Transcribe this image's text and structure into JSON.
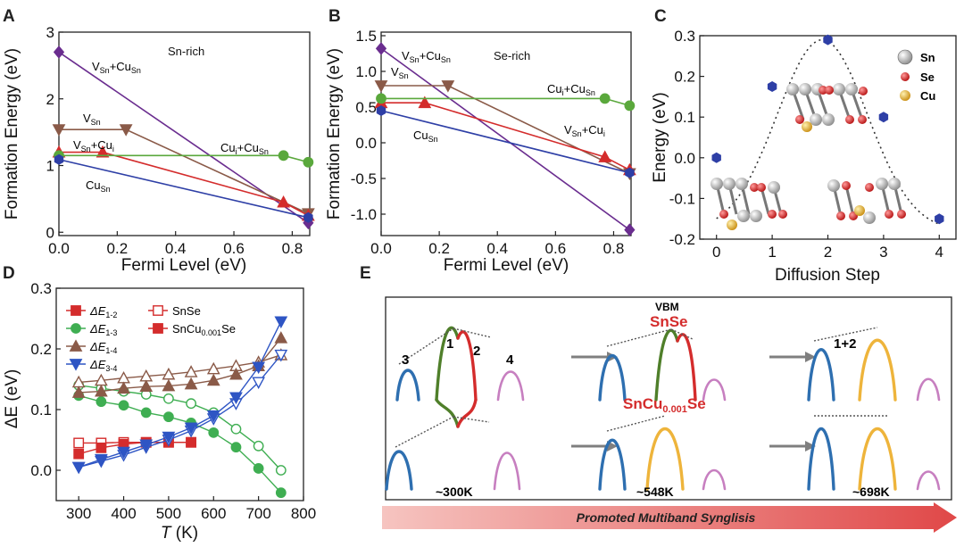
{
  "figure": {
    "panels": [
      "A",
      "B",
      "C",
      "D",
      "E"
    ]
  },
  "chart_data": [
    {
      "panel": "A",
      "type": "line",
      "annotation": "Sn-rich",
      "xlabel": "Fermi Level (eV)",
      "ylabel": "Formation Energy (eV)",
      "xlim": [
        0,
        0.86
      ],
      "ylim": [
        -0.05,
        3.0
      ],
      "xticks": [
        "0.0",
        "0.2",
        "0.4",
        "0.6",
        "0.8"
      ],
      "xtick_values": [
        0,
        0.2,
        0.4,
        0.6,
        0.8
      ],
      "yticks": [
        "0",
        "1",
        "2",
        "3"
      ],
      "ytick_values": [
        0,
        1,
        2,
        3
      ],
      "series": [
        {
          "name": "V_Sn+Cu_Sn",
          "label_main": "V",
          "label_sub": "Sn",
          "label_main2": "+Cu",
          "label_sub2": "Sn",
          "color": "#6a2d8f",
          "marker": "diamond",
          "x": [
            0,
            0.855
          ],
          "y": [
            2.7,
            0.14
          ]
        },
        {
          "name": "V_Sn",
          "label_main": "V",
          "label_sub": "Sn",
          "label_main2": "",
          "label_sub2": "",
          "color": "#8a5a48",
          "marker": "triangle-down",
          "x": [
            0,
            0.23,
            0.855
          ],
          "y": [
            1.54,
            1.54,
            0.28
          ]
        },
        {
          "name": "V_Sn+Cu_i",
          "label_main": "V",
          "label_sub": "Sn",
          "label_main2": "+Cu",
          "label_sub2": "i",
          "color": "#d42c2c",
          "marker": "triangle-up",
          "x": [
            0,
            0.15,
            0.77,
            0.855
          ],
          "y": [
            1.2,
            1.2,
            0.45,
            0.25
          ]
        },
        {
          "name": "Cu_i+Cu_Sn",
          "label_main": "Cu",
          "label_sub": "i",
          "label_main2": "+Cu",
          "label_sub2": "Sn",
          "color": "#5aa83c",
          "marker": "circle",
          "x": [
            0,
            0.77,
            0.855
          ],
          "y": [
            1.15,
            1.15,
            1.05
          ]
        },
        {
          "name": "Cu_Sn",
          "label_main": "Cu",
          "label_sub": "Sn",
          "label_main2": "",
          "label_sub2": "",
          "color": "#2e3fa6",
          "marker": "hexagon",
          "x": [
            0,
            0.855
          ],
          "y": [
            1.09,
            0.22
          ]
        }
      ]
    },
    {
      "panel": "B",
      "type": "line",
      "annotation": "Se-rich",
      "xlabel": "Fermi Level (eV)",
      "ylabel": "Formation Energy (eV)",
      "xlim": [
        0,
        0.86
      ],
      "ylim": [
        -1.3,
        1.55
      ],
      "xticks": [
        "0.0",
        "0.2",
        "0.4",
        "0.6",
        "0.8"
      ],
      "xtick_values": [
        0,
        0.2,
        0.4,
        0.6,
        0.8
      ],
      "yticks": [
        "1.5",
        "1.0",
        "0.5",
        "0.0",
        "-0.5",
        "-1.0"
      ],
      "ytick_values": [
        1.5,
        1.0,
        0.5,
        0.0,
        -0.5,
        -1.0
      ],
      "series": [
        {
          "name": "V_Sn+Cu_Sn",
          "label_main": "V",
          "label_sub": "Sn",
          "label_main2": "+Cu",
          "label_sub2": "Sn",
          "color": "#6a2d8f",
          "marker": "diamond",
          "x": [
            0,
            0.855
          ],
          "y": [
            1.32,
            -1.22
          ]
        },
        {
          "name": "V_Sn",
          "label_main": "V",
          "label_sub": "Sn",
          "label_main2": "",
          "label_sub2": "",
          "color": "#8a5a48",
          "marker": "triangle-down",
          "x": [
            0,
            0.23,
            0.855
          ],
          "y": [
            0.8,
            0.8,
            -0.43
          ]
        },
        {
          "name": "V_Sn+Cu_i",
          "label_main": "V",
          "label_sub": "Sn",
          "label_main2": "+Cu",
          "label_sub2": "i",
          "color": "#d42c2c",
          "marker": "triangle-up",
          "x": [
            0,
            0.15,
            0.77,
            0.855
          ],
          "y": [
            0.56,
            0.56,
            -0.2,
            -0.38
          ]
        },
        {
          "name": "Cu_i+Cu_Sn",
          "label_main": "Cu",
          "label_sub": "i",
          "label_main2": "+Cu",
          "label_sub2": "Sn",
          "color": "#5aa83c",
          "marker": "circle",
          "x": [
            0,
            0.77,
            0.855
          ],
          "y": [
            0.62,
            0.62,
            0.52
          ]
        },
        {
          "name": "Cu_Sn",
          "label_main": "Cu",
          "label_sub": "Sn",
          "label_main2": "",
          "label_sub2": "",
          "color": "#2e3fa6",
          "marker": "hexagon",
          "x": [
            0,
            0.855
          ],
          "y": [
            0.45,
            -0.42
          ]
        }
      ]
    },
    {
      "panel": "C",
      "type": "scatter",
      "xlabel": "Diffusion Step",
      "ylabel": "Energy (eV)",
      "xlim": [
        -0.3,
        4.3
      ],
      "ylim": [
        -0.2,
        0.3
      ],
      "xticks": [
        "0",
        "1",
        "2",
        "3",
        "4"
      ],
      "xtick_values": [
        0,
        1,
        2,
        3,
        4
      ],
      "yticks": [
        "0.3",
        "0.2",
        "0.1",
        "0.0",
        "-0.1",
        "-0.2"
      ],
      "ytick_values": [
        0.3,
        0.2,
        0.1,
        0.0,
        -0.1,
        -0.2
      ],
      "points": {
        "x": [
          0,
          1,
          2,
          3,
          4
        ],
        "y": [
          0.0,
          0.175,
          0.29,
          0.1,
          -0.15
        ]
      },
      "point_color": "#2e3fa6",
      "legend": [
        {
          "label": "Sn",
          "color": "#a9a9a9"
        },
        {
          "label": "Se",
          "color": "#d42020"
        },
        {
          "label": "Cu",
          "color": "#e8b630"
        }
      ]
    },
    {
      "panel": "D",
      "type": "line",
      "xlabel_main": "T",
      "xlabel_unit": " (K)",
      "ylabel": "ΔE (eV)",
      "xlim": [
        250,
        800
      ],
      "ylim": [
        -0.05,
        0.3
      ],
      "xticks": [
        "300",
        "400",
        "500",
        "600",
        "700",
        "800"
      ],
      "xtick_values": [
        300,
        400,
        500,
        600,
        700,
        800
      ],
      "yticks": [
        "0.3",
        "0.2",
        "0.1",
        "0.0"
      ],
      "ytick_values": [
        0.3,
        0.2,
        0.1,
        0.0
      ],
      "legend": [
        {
          "label_main": "ΔE",
          "label_sub": "1-2",
          "color": "#d42c2c",
          "marker": "square"
        },
        {
          "label_main": "ΔE",
          "label_sub": "1-3",
          "color": "#3fae52",
          "marker": "circle"
        },
        {
          "label_main": "ΔE",
          "label_sub": "1-4",
          "color": "#8a5a48",
          "marker": "triangle-up"
        },
        {
          "label_main": "ΔE",
          "label_sub": "3-4",
          "color": "#2e55c4",
          "marker": "triangle-down"
        },
        {
          "label_main": "SnSe",
          "label_sub": "",
          "label_tail": "",
          "color": "#d42c2c",
          "marker": "square-open"
        },
        {
          "label_main": "SnCu",
          "label_sub": "0.001",
          "label_tail": "Se",
          "color": "#d42c2c",
          "marker": "square"
        }
      ],
      "series": [
        {
          "name": "ΔE1-2 SnSe",
          "color": "#d42c2c",
          "marker": "square",
          "filled": false,
          "x": [
            300,
            350,
            400,
            450,
            500,
            550
          ],
          "y": [
            0.045,
            0.045,
            0.046,
            0.046,
            0.046,
            0.046
          ]
        },
        {
          "name": "ΔE1-2 SnCu0.001Se",
          "color": "#d42c2c",
          "marker": "square",
          "filled": true,
          "x": [
            300,
            350,
            400,
            450,
            500,
            550
          ],
          "y": [
            0.027,
            0.037,
            0.043,
            0.046,
            0.046,
            0.046
          ]
        },
        {
          "name": "ΔE1-3 SnSe",
          "color": "#3fae52",
          "marker": "circle",
          "filled": false,
          "x": [
            300,
            350,
            400,
            450,
            500,
            550,
            600,
            650,
            700,
            750
          ],
          "y": [
            0.14,
            0.135,
            0.13,
            0.125,
            0.118,
            0.11,
            0.095,
            0.068,
            0.04,
            0.0
          ]
        },
        {
          "name": "ΔE1-3 SnCu0.001Se",
          "color": "#3fae52",
          "marker": "circle",
          "filled": true,
          "x": [
            300,
            350,
            400,
            450,
            500,
            550,
            600,
            650,
            700,
            750
          ],
          "y": [
            0.123,
            0.113,
            0.107,
            0.095,
            0.088,
            0.078,
            0.062,
            0.038,
            0.003,
            -0.037
          ]
        },
        {
          "name": "ΔE1-4 SnSe",
          "color": "#8a5a48",
          "marker": "triangle-up",
          "filled": false,
          "x": [
            300,
            350,
            400,
            450,
            500,
            550,
            600,
            650,
            700,
            750
          ],
          "y": [
            0.145,
            0.148,
            0.152,
            0.155,
            0.158,
            0.162,
            0.167,
            0.172,
            0.178,
            0.19
          ]
        },
        {
          "name": "ΔE1-4 SnCu0.001Se",
          "color": "#8a5a48",
          "marker": "triangle-up",
          "filled": true,
          "x": [
            300,
            350,
            400,
            450,
            500,
            550,
            600,
            650,
            700,
            750
          ],
          "y": [
            0.128,
            0.13,
            0.135,
            0.138,
            0.139,
            0.142,
            0.148,
            0.158,
            0.172,
            0.218
          ]
        },
        {
          "name": "ΔE3-4 SnSe",
          "color": "#2e55c4",
          "marker": "triangle-down",
          "filled": false,
          "x": [
            300,
            350,
            400,
            450,
            500,
            550,
            600,
            650,
            700,
            750
          ],
          "y": [
            0.005,
            0.015,
            0.025,
            0.038,
            0.05,
            0.065,
            0.085,
            0.11,
            0.145,
            0.19
          ]
        },
        {
          "name": "ΔE3-4 SnCu0.001Se",
          "color": "#2e55c4",
          "marker": "triangle-down",
          "filled": true,
          "x": [
            300,
            350,
            400,
            450,
            500,
            550,
            600,
            650,
            700,
            750
          ],
          "y": [
            0.005,
            0.018,
            0.03,
            0.042,
            0.055,
            0.07,
            0.09,
            0.12,
            0.17,
            0.245
          ]
        }
      ]
    },
    {
      "panel": "E",
      "type": "diagram",
      "texts": {
        "vbm": "VBM",
        "snse": "SnSe",
        "sncu_main": "SnCu",
        "sncu_sub": "0.001",
        "sncu_tail": "Se",
        "peak1": "1",
        "peak2": "2",
        "peak3": "3",
        "peak4": "4",
        "peak12": "1+2",
        "temp1": "~300K",
        "temp2": "~548K",
        "temp3": "~698K",
        "banner": "Promoted Multiband Synglisis"
      },
      "colors": {
        "band1": "#4f7f2a",
        "band2": "#d42c2c",
        "band3": "#2e6fb0",
        "band4": "#c77fc0",
        "merged": "#eeb43b",
        "arrow": "#7f7f7f",
        "banner_start": "#f6c4c0",
        "banner_end": "#e04848"
      }
    }
  ]
}
